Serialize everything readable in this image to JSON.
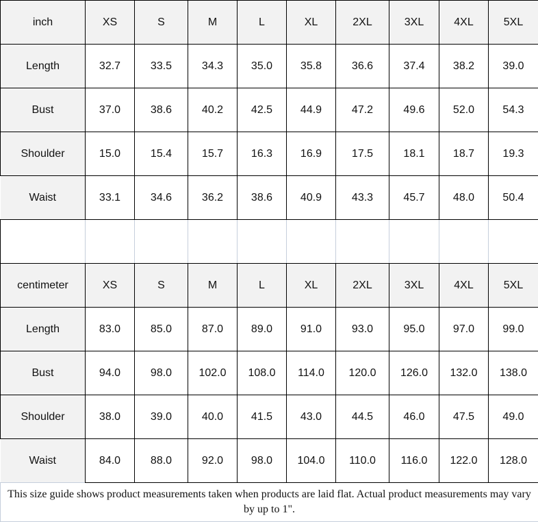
{
  "tables": [
    {
      "unit": "inch",
      "sizes": [
        "XS",
        "S",
        "M",
        "L",
        "XL",
        "2XL",
        "3XL",
        "4XL",
        "5XL"
      ],
      "rows": [
        {
          "label": "Length",
          "values": [
            "32.7",
            "33.5",
            "34.3",
            "35.0",
            "35.8",
            "36.6",
            "37.4",
            "38.2",
            "39.0"
          ]
        },
        {
          "label": "Bust",
          "values": [
            "37.0",
            "38.6",
            "40.2",
            "42.5",
            "44.9",
            "47.2",
            "49.6",
            "52.0",
            "54.3"
          ]
        },
        {
          "label": "Shoulder",
          "values": [
            "15.0",
            "15.4",
            "15.7",
            "16.3",
            "16.9",
            "17.5",
            "18.1",
            "18.7",
            "19.3"
          ]
        },
        {
          "label": "Waist",
          "values": [
            "33.1",
            "34.6",
            "36.2",
            "38.6",
            "40.9",
            "43.3",
            "45.7",
            "48.0",
            "50.4"
          ]
        }
      ]
    },
    {
      "unit": "centimeter",
      "sizes": [
        "XS",
        "S",
        "M",
        "L",
        "XL",
        "2XL",
        "3XL",
        "4XL",
        "5XL"
      ],
      "rows": [
        {
          "label": "Length",
          "values": [
            "83.0",
            "85.0",
            "87.0",
            "89.0",
            "91.0",
            "93.0",
            "95.0",
            "97.0",
            "99.0"
          ]
        },
        {
          "label": "Bust",
          "values": [
            "94.0",
            "98.0",
            "102.0",
            "108.0",
            "114.0",
            "120.0",
            "126.0",
            "132.0",
            "138.0"
          ]
        },
        {
          "label": "Shoulder",
          "values": [
            "38.0",
            "39.0",
            "40.0",
            "41.5",
            "43.0",
            "44.5",
            "46.0",
            "47.5",
            "49.0"
          ]
        },
        {
          "label": "Waist",
          "values": [
            "84.0",
            "88.0",
            "92.0",
            "98.0",
            "104.0",
            "110.0",
            "116.0",
            "122.0",
            "128.0"
          ]
        }
      ]
    }
  ],
  "footer": "This size guide shows product measurements taken when products are laid flat. Actual product measurements may vary by up to 1\"."
}
